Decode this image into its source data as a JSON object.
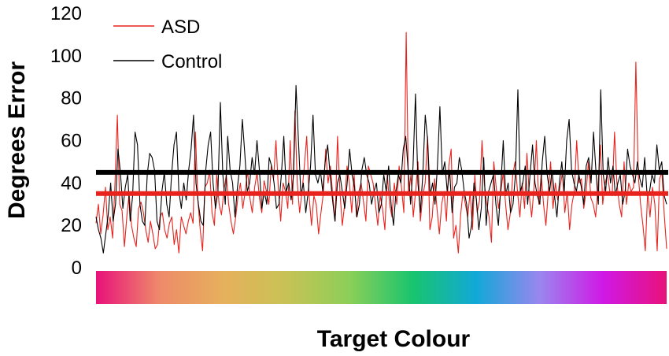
{
  "chart_data": {
    "type": "line",
    "title": "",
    "xlabel": "Target Colour",
    "ylabel": "Degrees Error",
    "ylim": [
      0,
      120
    ],
    "yticks": [
      0,
      20,
      40,
      60,
      80,
      100,
      120
    ],
    "grid": false,
    "legend_placement": "top-left",
    "colour_bar_stops": [
      "#e8127a",
      "#ee8a6a",
      "#e6b05c",
      "#c8c255",
      "#8ccf58",
      "#18c46e",
      "#12a8d8",
      "#9a86ee",
      "#d018e6",
      "#e8127a"
    ],
    "series": [
      {
        "name": "ASD",
        "color": "#e8231e",
        "mean": 35,
        "values": [
          21,
          30,
          16,
          25,
          38,
          18,
          24,
          14,
          40,
          72,
          30,
          27,
          10,
          24,
          35,
          20,
          14,
          10,
          28,
          31,
          26,
          18,
          12,
          22,
          16,
          9,
          11,
          24,
          26,
          18,
          14,
          21,
          24,
          11,
          18,
          7,
          24,
          20,
          16,
          22,
          26,
          21,
          64,
          32,
          18,
          8,
          38,
          40,
          46,
          26,
          20,
          44,
          30,
          25,
          36,
          44,
          30,
          22,
          16,
          24,
          34,
          40,
          28,
          36,
          46,
          33,
          26,
          38,
          45,
          33,
          26,
          41,
          36,
          30,
          48,
          42,
          60,
          38,
          22,
          40,
          36,
          28,
          60,
          30,
          74,
          40,
          26,
          36,
          48,
          62,
          34,
          20,
          34,
          30,
          16,
          26,
          35,
          56,
          40,
          48,
          34,
          22,
          62,
          36,
          20,
          30,
          48,
          40,
          26,
          44,
          24,
          36,
          40,
          31,
          22,
          48,
          44,
          40,
          30,
          20,
          34,
          28,
          18,
          44,
          30,
          24,
          40,
          30,
          48,
          38,
          26,
          111,
          34,
          44,
          24,
          36,
          50,
          22,
          34,
          40,
          62,
          18,
          24,
          42,
          28,
          16,
          30,
          36,
          22,
          48,
          56,
          14,
          20,
          7,
          25,
          36,
          30,
          24,
          36,
          18,
          44,
          26,
          32,
          60,
          40,
          30,
          24,
          12,
          50,
          38,
          28,
          36,
          45,
          30,
          18,
          26,
          44,
          50,
          36,
          24,
          40,
          28,
          54,
          34,
          24,
          38,
          60,
          30,
          44,
          30,
          20,
          36,
          50,
          28,
          40,
          32,
          38,
          45,
          26,
          36,
          18,
          30,
          36,
          60,
          40,
          42,
          28,
          36,
          50,
          33,
          30,
          24,
          38,
          58,
          30,
          40,
          44,
          36,
          34,
          64,
          40,
          30,
          24,
          50,
          30,
          40,
          36,
          38,
          97,
          44,
          30,
          20,
          8,
          36,
          24,
          38,
          30,
          8,
          42,
          45,
          25,
          9
        ]
      },
      {
        "name": "Control",
        "color": "#000000",
        "mean": 45,
        "values": [
          24,
          18,
          14,
          7,
          16,
          25,
          40,
          22,
          30,
          56,
          45,
          28,
          38,
          44,
          22,
          34,
          64,
          58,
          30,
          22,
          20,
          44,
          54,
          52,
          46,
          22,
          18,
          36,
          45,
          30,
          24,
          44,
          58,
          64,
          36,
          28,
          40,
          32,
          46,
          56,
          72,
          40,
          30,
          22,
          20,
          46,
          58,
          64,
          40,
          28,
          36,
          78,
          44,
          30,
          62,
          46,
          40,
          24,
          38,
          48,
          70,
          54,
          36,
          40,
          52,
          44,
          60,
          46,
          28,
          36,
          30,
          52,
          48,
          40,
          28,
          30,
          44,
          62,
          36,
          40,
          32,
          44,
          86,
          60,
          34,
          40,
          26,
          36,
          48,
          72,
          44,
          40,
          46,
          36,
          50,
          58,
          44,
          32,
          22,
          40,
          44,
          36,
          28,
          40,
          56,
          44,
          38,
          24,
          30,
          46,
          52,
          44,
          40,
          30,
          36,
          40,
          26,
          30,
          44,
          36,
          48,
          30,
          20,
          36,
          44,
          40,
          56,
          62,
          46,
          30,
          48,
          82,
          40,
          26,
          44,
          72,
          60,
          34,
          40,
          30,
          48,
          76,
          44,
          50,
          36,
          46,
          26,
          38,
          40,
          52,
          46,
          36,
          30,
          14,
          20,
          40,
          32,
          18,
          28,
          52,
          20,
          36,
          40,
          44,
          30,
          20,
          38,
          60,
          34,
          40,
          26,
          30,
          44,
          84,
          36,
          40,
          48,
          30,
          44,
          58,
          40,
          34,
          30,
          50,
          62,
          44,
          36,
          46,
          34,
          24,
          40,
          50,
          36,
          60,
          70,
          46,
          40,
          36,
          44,
          38,
          30,
          48,
          52,
          40,
          64,
          46,
          30,
          84,
          44,
          36,
          52,
          40,
          48,
          34,
          40,
          44,
          30,
          36,
          56,
          48,
          44,
          40,
          50,
          42,
          38,
          52,
          34,
          36,
          44,
          40,
          58,
          46,
          50,
          34,
          30
        ]
      }
    ]
  }
}
